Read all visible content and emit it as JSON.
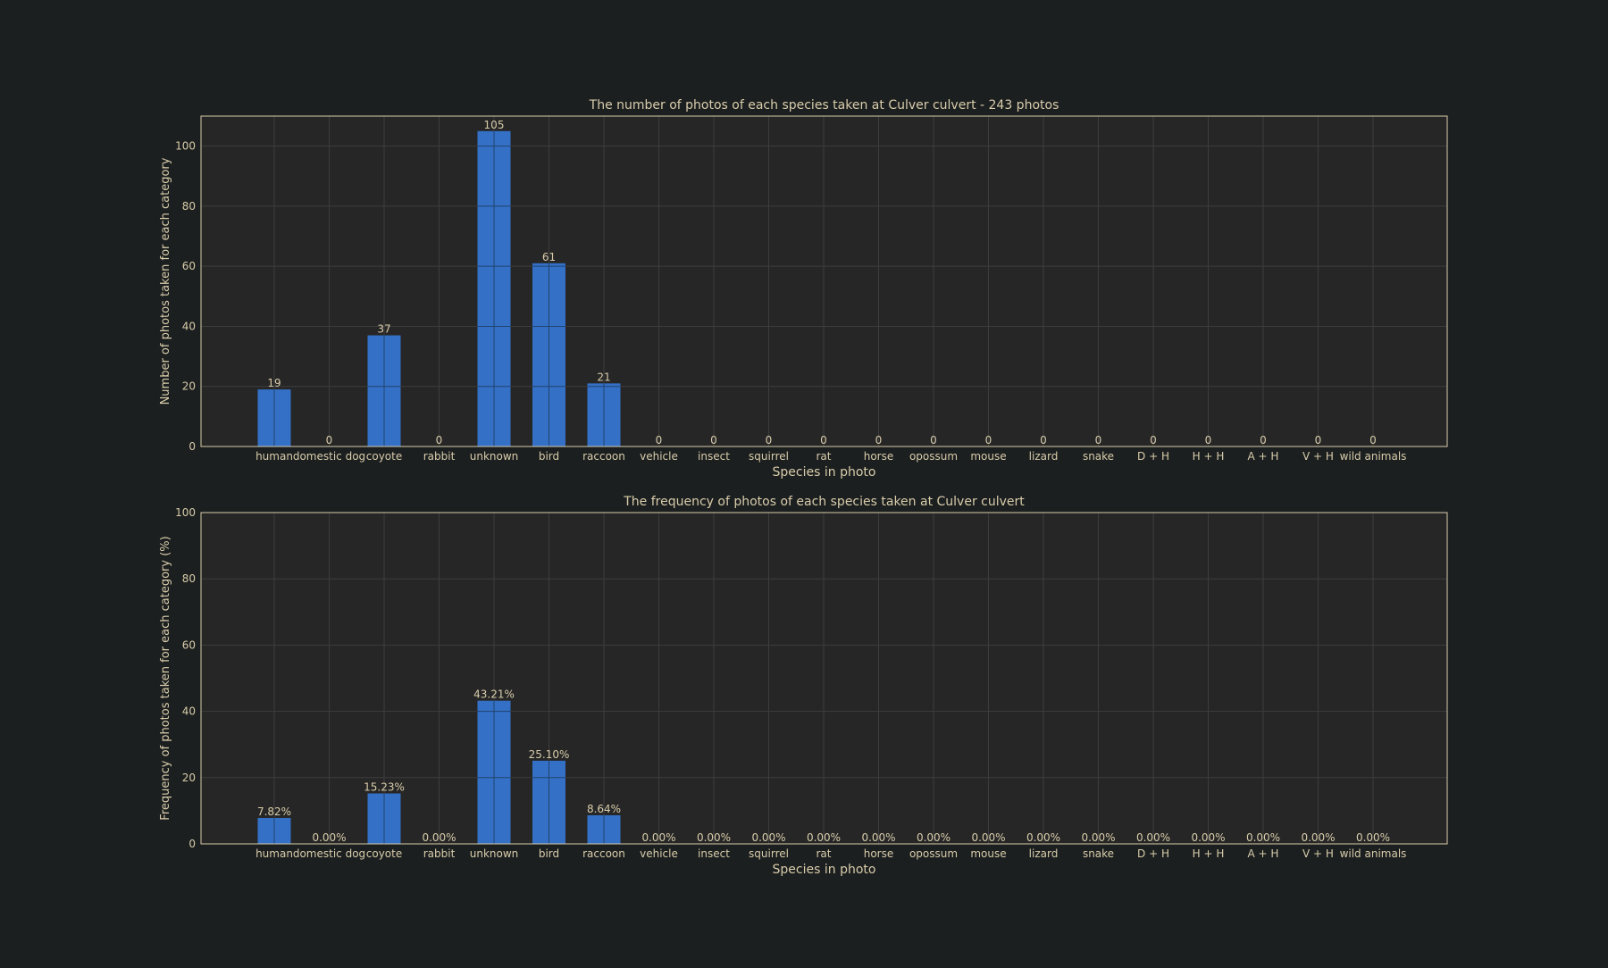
{
  "theme": {
    "background": "#1c1f20",
    "plot_background": "#262626",
    "frame_color": "#d8ccaa",
    "grid_color": "#3d3d3d",
    "text_color": "#d8ccaa",
    "bar_color": "#3470c6"
  },
  "chart_data": [
    {
      "type": "bar",
      "title": "The number of photos of each species taken at Culver culvert - 243 photos",
      "xlabel": "Species in photo",
      "ylabel": "Number of photos taken for each category",
      "categories": [
        "human",
        "domestic dog",
        "coyote",
        "rabbit",
        "unknown",
        "bird",
        "raccoon",
        "vehicle",
        "insect",
        "squirrel",
        "rat",
        "horse",
        "opossum",
        "mouse",
        "lizard",
        "snake",
        "D + H",
        "H + H",
        "A + H",
        "V + H",
        "wild animals"
      ],
      "values": [
        19,
        0,
        37,
        0,
        105,
        61,
        21,
        0,
        0,
        0,
        0,
        0,
        0,
        0,
        0,
        0,
        0,
        0,
        0,
        0,
        0
      ],
      "value_labels": [
        "19",
        "0",
        "37",
        "0",
        "105",
        "61",
        "21",
        "0",
        "0",
        "0",
        "0",
        "0",
        "0",
        "0",
        "0",
        "0",
        "0",
        "0",
        "0",
        "0",
        "0"
      ],
      "ylim": [
        0,
        110
      ],
      "yticks": [
        "0",
        "20",
        "40",
        "60",
        "80",
        "100"
      ],
      "grid": true,
      "legend": "none"
    },
    {
      "type": "bar",
      "title": "The frequency of photos of each species taken at Culver culvert",
      "xlabel": "Species in photo",
      "ylabel": "Frequency of photos taken for each category (%)",
      "categories": [
        "human",
        "domestic dog",
        "coyote",
        "rabbit",
        "unknown",
        "bird",
        "raccoon",
        "vehicle",
        "insect",
        "squirrel",
        "rat",
        "horse",
        "opossum",
        "mouse",
        "lizard",
        "snake",
        "D + H",
        "H + H",
        "A + H",
        "V + H",
        "wild animals"
      ],
      "values": [
        7.82,
        0,
        15.23,
        0,
        43.21,
        25.1,
        8.64,
        0,
        0,
        0,
        0,
        0,
        0,
        0,
        0,
        0,
        0,
        0,
        0,
        0,
        0
      ],
      "value_labels": [
        "7.82%",
        "0.00%",
        "15.23%",
        "0.00%",
        "43.21%",
        "25.10%",
        "8.64%",
        "0.00%",
        "0.00%",
        "0.00%",
        "0.00%",
        "0.00%",
        "0.00%",
        "0.00%",
        "0.00%",
        "0.00%",
        "0.00%",
        "0.00%",
        "0.00%",
        "0.00%",
        "0.00%"
      ],
      "ylim": [
        0,
        100
      ],
      "yticks": [
        "0",
        "20",
        "40",
        "60",
        "80",
        "100"
      ],
      "grid": true,
      "legend": "none"
    }
  ]
}
